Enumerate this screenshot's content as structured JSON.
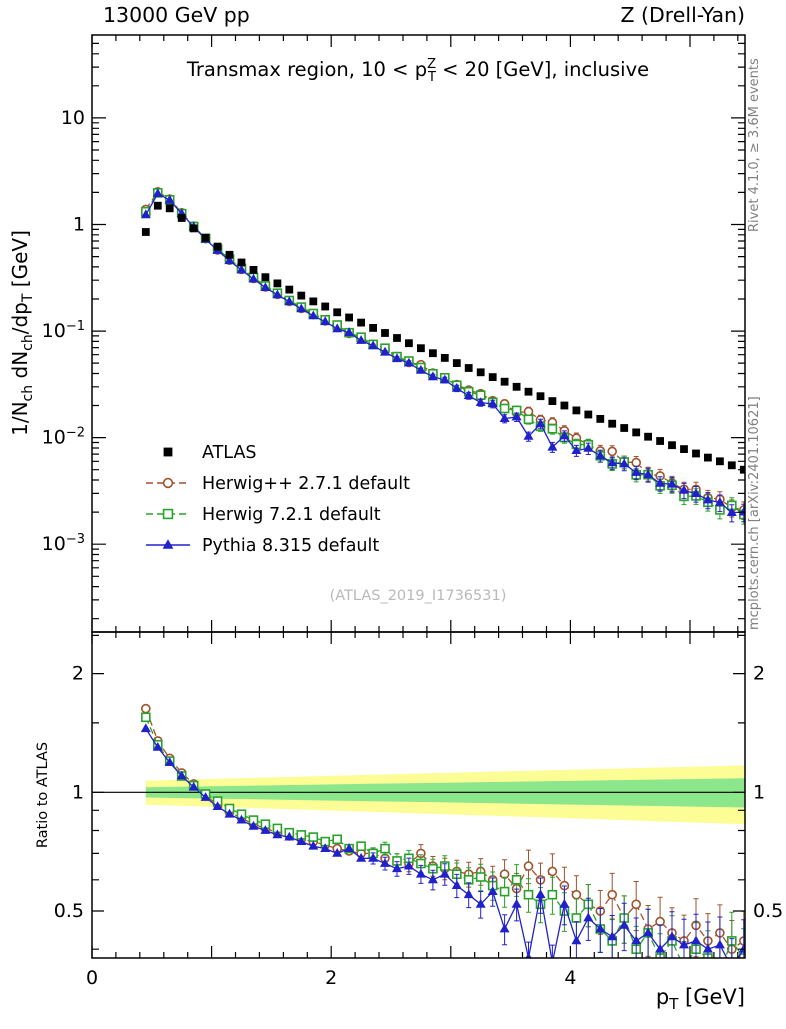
{
  "labels": {
    "header_left": "13000 GeV pp",
    "header_right": "Z (Drell-Yan)",
    "watermark": "(ATLAS_2019_I1736531)",
    "side_note_top": "Rivet 4.1.0, ≥ 3.6M events",
    "side_note_bottom": "mcplots.cern.ch [arXiv:2401.10621]",
    "title": {
      "pre": "Transmax region, 10 < p",
      "sup": "Z",
      "sub": "T",
      "post": " < 20 [GeV], inclusive"
    },
    "ylabel_main": {
      "p1": "1/N",
      "s1": "ch",
      "p2": " dN",
      "s2": "ch",
      "p3": "/dp",
      "s3": "T",
      "p4": " [GeV]"
    },
    "ylabel_ratio": "Ratio to ATLAS",
    "xlabel": {
      "p1": "p",
      "s1": "T",
      "p2": " [GeV]"
    }
  },
  "chart_data": {
    "type": "scatter",
    "title": "Transmax region, 10 < pT^Z < 20 [GeV], inclusive",
    "xlabel": "pT [GeV]",
    "ylabel_main": "1/Nch dNch/dpT [GeV]",
    "ylabel_ratio": "Ratio to ATLAS",
    "legend_position": "main panel, left-center",
    "axes": {
      "xlim": [
        0,
        5.46
      ],
      "main_ylim": [
        0.00015,
        60
      ],
      "main_yscale": "log",
      "ratio_ylim": [
        0.38,
        2.55
      ],
      "ratio_yscale": "log",
      "grid": false,
      "xticks_major": [
        0,
        1,
        2,
        3,
        4,
        5
      ],
      "xticks_labeled": [
        {
          "v": 0,
          "label": "0"
        },
        {
          "v": 2,
          "label": "2"
        },
        {
          "v": 4,
          "label": "4"
        }
      ],
      "main_yticks": [
        {
          "v": 10,
          "base": "10",
          "exp": ""
        },
        {
          "v": 1,
          "base": "1",
          "exp": ""
        },
        {
          "v": 0.1,
          "base": "10",
          "exp": "−1"
        },
        {
          "v": 0.01,
          "base": "10",
          "exp": "−2"
        },
        {
          "v": 0.001,
          "base": "10",
          "exp": "−3"
        }
      ],
      "ratio_yticks": [
        {
          "v": 2,
          "label": "2"
        },
        {
          "v": 1,
          "label": "1"
        },
        {
          "v": 0.5,
          "label": "0.5"
        }
      ],
      "ratio_yticks_minor": [
        0.4,
        0.6,
        0.7,
        0.8,
        0.9,
        1.5,
        2.5
      ]
    },
    "x": [
      0.45,
      0.55,
      0.65,
      0.75,
      0.85,
      0.95,
      1.05,
      1.15,
      1.25,
      1.35,
      1.45,
      1.55,
      1.65,
      1.75,
      1.85,
      1.95,
      2.05,
      2.15,
      2.25,
      2.35,
      2.45,
      2.55,
      2.65,
      2.75,
      2.85,
      2.95,
      3.05,
      3.15,
      3.25,
      3.35,
      3.45,
      3.55,
      3.65,
      3.75,
      3.85,
      3.95,
      4.05,
      4.15,
      4.25,
      4.35,
      4.45,
      4.55,
      4.65,
      4.75,
      4.85,
      4.95,
      5.05,
      5.15,
      5.25,
      5.35,
      5.45
    ],
    "series": [
      {
        "id": "atlas",
        "label": "ATLAS",
        "type": "data",
        "color": "#000000",
        "marker": "square-filled",
        "line": "none",
        "values": [
          0.85,
          1.5,
          1.42,
          1.15,
          0.92,
          0.75,
          0.62,
          0.52,
          0.44,
          0.375,
          0.32,
          0.28,
          0.245,
          0.215,
          0.19,
          0.17,
          0.15,
          0.134,
          0.12,
          0.107,
          0.096,
          0.086,
          0.077,
          0.069,
          0.062,
          0.056,
          0.05,
          0.045,
          0.041,
          0.037,
          0.0335,
          0.03,
          0.027,
          0.0245,
          0.022,
          0.02,
          0.018,
          0.0165,
          0.015,
          0.0135,
          0.0123,
          0.0112,
          0.0102,
          0.0093,
          0.0085,
          0.0078,
          0.0071,
          0.0065,
          0.006,
          0.0055,
          0.005
        ]
      },
      {
        "id": "herwigpp",
        "label": "Herwig++ 2.7.1 default",
        "type": "mc",
        "color": "#a0522d",
        "marker": "circle-open",
        "line": "dashed",
        "ratio_to_atlas": [
          1.63,
          1.35,
          1.22,
          1.12,
          1.05,
          0.98,
          0.93,
          0.89,
          0.86,
          0.83,
          0.81,
          0.79,
          0.775,
          0.76,
          0.75,
          0.735,
          0.72,
          0.71,
          0.7,
          0.7,
          0.68,
          0.67,
          0.66,
          0.7,
          0.65,
          0.64,
          0.63,
          0.62,
          0.63,
          0.6,
          0.62,
          0.57,
          0.65,
          0.6,
          0.63,
          0.58,
          0.55,
          0.52,
          0.5,
          0.55,
          0.48,
          0.52,
          0.45,
          0.47,
          0.44,
          0.42,
          0.46,
          0.42,
          0.44,
          0.4,
          0.42
        ]
      },
      {
        "id": "herwig7",
        "label": "Herwig 7.2.1 default",
        "type": "mc",
        "color": "#2aa22a",
        "marker": "square-open",
        "line": "dashed",
        "ratio_to_atlas": [
          1.55,
          1.32,
          1.2,
          1.1,
          1.04,
          0.99,
          0.95,
          0.91,
          0.88,
          0.85,
          0.83,
          0.81,
          0.79,
          0.78,
          0.77,
          0.75,
          0.76,
          0.72,
          0.73,
          0.7,
          0.72,
          0.67,
          0.68,
          0.66,
          0.64,
          0.65,
          0.62,
          0.6,
          0.61,
          0.58,
          0.56,
          0.6,
          0.55,
          0.52,
          0.55,
          0.5,
          0.48,
          0.52,
          0.45,
          0.42,
          0.48,
          0.4,
          0.44,
          0.38,
          0.42,
          0.36,
          0.4,
          0.38,
          0.35,
          0.42,
          0.38
        ]
      },
      {
        "id": "pythia8",
        "label": "Pythia 8.315 default",
        "type": "mc",
        "color": "#2121cc",
        "marker": "triangle-filled",
        "line": "solid",
        "ratio_to_atlas": [
          1.45,
          1.3,
          1.19,
          1.1,
          1.03,
          0.97,
          0.92,
          0.88,
          0.85,
          0.82,
          0.8,
          0.78,
          0.77,
          0.75,
          0.73,
          0.72,
          0.7,
          0.72,
          0.68,
          0.68,
          0.66,
          0.64,
          0.65,
          0.62,
          0.6,
          0.62,
          0.58,
          0.55,
          0.52,
          0.56,
          0.45,
          0.52,
          0.38,
          0.55,
          0.37,
          0.52,
          0.42,
          0.48,
          0.45,
          0.43,
          0.46,
          0.42,
          0.44,
          0.4,
          0.43,
          0.41,
          0.42,
          0.4,
          0.41,
          0.36,
          0.4
        ]
      }
    ],
    "uncertainty_bands": {
      "reference": "ATLAS data uncertainty, ratio panel, centered at 1",
      "x_start": 0.45,
      "x_end": 5.46,
      "yellow": {
        "color": "#fdfd96",
        "half_width_start": 0.07,
        "half_width_end": 0.17
      },
      "green": {
        "color": "#8ce68c",
        "half_width_start": 0.03,
        "half_width_end": 0.085
      }
    }
  }
}
